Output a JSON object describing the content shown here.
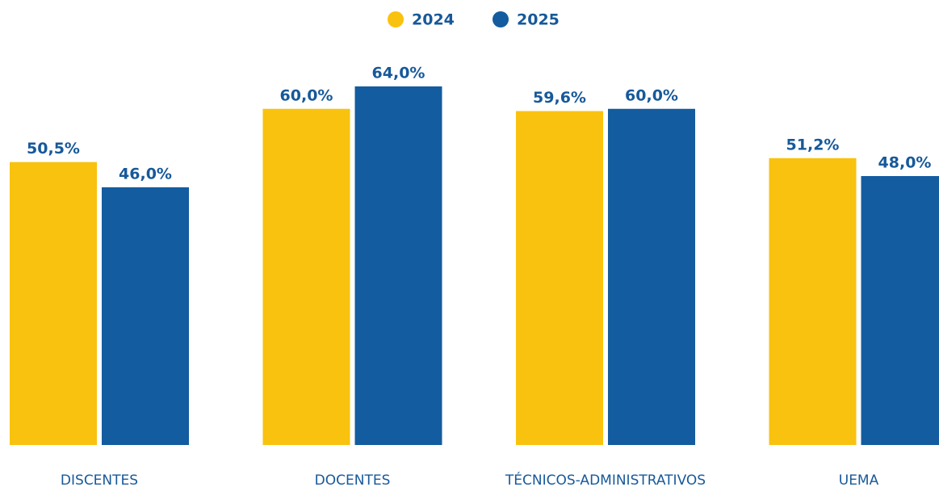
{
  "chart_data": {
    "type": "bar",
    "categories": [
      "DISCENTES",
      "DOCENTES",
      "TÉCNICOS-ADMINISTRATIVOS",
      "UEMA"
    ],
    "series": [
      {
        "name": "2024",
        "color": "#f9c20e",
        "values": [
          50.5,
          60.0,
          59.6,
          51.2
        ],
        "value_labels": [
          "50,5%",
          "60,0%",
          "59,6%",
          "51,2%"
        ]
      },
      {
        "name": "2025",
        "color": "#135c9f",
        "values": [
          46.0,
          64.0,
          60.0,
          48.0
        ],
        "value_labels": [
          "46,0%",
          "64,0%",
          "60,0%",
          "48,0%"
        ]
      }
    ]
  }
}
